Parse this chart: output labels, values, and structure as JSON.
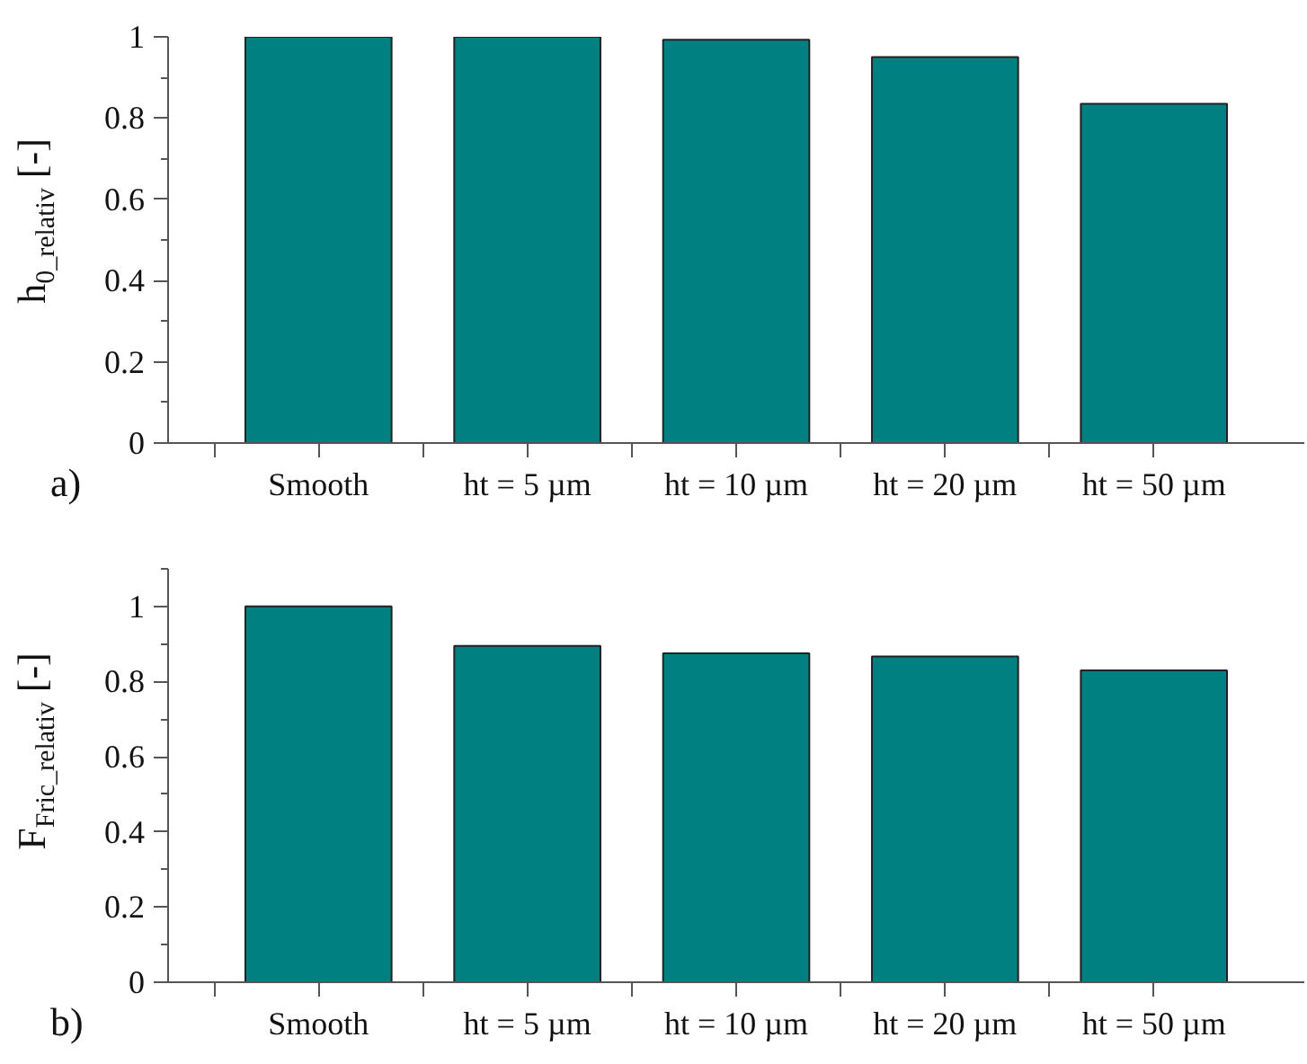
{
  "chart_data": [
    {
      "type": "bar",
      "categories": [
        "Smooth",
        "ht = 5 µm",
        "ht = 10 µm",
        "ht = 20 µm",
        "ht = 50 µm"
      ],
      "values": [
        1.0,
        1.0,
        0.993,
        0.95,
        0.835
      ],
      "color": "#008080",
      "ylabel": "h$_{0_relativ}$ [-]",
      "ylim": [
        0,
        1
      ],
      "yticks": [
        0,
        0.2,
        0.4,
        0.6,
        0.8,
        1
      ],
      "grid": false,
      "annotations": [
        "a)"
      ]
    },
    {
      "type": "bar",
      "categories": [
        "Smooth",
        "ht = 5 µm",
        "ht = 10 µm",
        "ht = 20 µm",
        "ht = 50 µm"
      ],
      "values": [
        1.0,
        0.895,
        0.875,
        0.867,
        0.83
      ],
      "color": "#008080",
      "ylabel": "F$_{Fric_relativ}$ [-]",
      "ylim": [
        0,
        1.1
      ],
      "yticks": [
        0,
        0.2,
        0.4,
        0.6,
        0.8,
        1
      ],
      "grid": false,
      "annotations": [
        "b)"
      ]
    }
  ]
}
